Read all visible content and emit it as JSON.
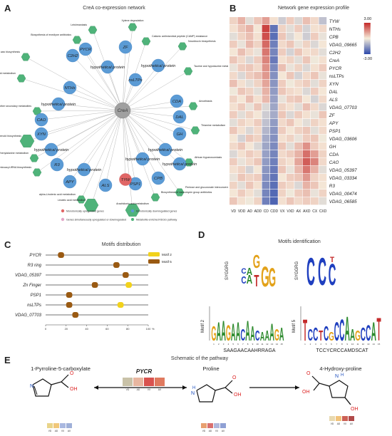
{
  "panels": {
    "a": {
      "letter": "A",
      "title": "CreA co-expression network"
    },
    "b": {
      "letter": "B",
      "title": "Network gene expression profile"
    },
    "c": {
      "letter": "C",
      "title": "Motifs distribution"
    },
    "d": {
      "letter": "D",
      "title": "Motifs identification"
    },
    "e": {
      "letter": "E",
      "title": "Schematic of the pathway"
    }
  },
  "network": {
    "center": "CreA",
    "genes_down": [
      "PYCR",
      "ZF",
      "C2H2",
      "hypothetical protein",
      "hypothetical protein",
      "nsLTPs",
      "NTHs",
      "hypothetical protein",
      "CDA",
      "CAO",
      "DAL",
      "XYN",
      "GH",
      "hypothetical protein",
      "hypothetical protein",
      "R3",
      "hypothetical protein",
      "APY",
      "ALS",
      "PSP1",
      "CPB",
      "hypothetical protein",
      "hypothetical protein"
    ],
    "genes_up": [
      "TYW"
    ],
    "pathways": [
      "Leishmaniasis",
      "Xylene degradation",
      "Biosynthesis of enediyne antibiotics",
      "Cationic antimicrobial peptide (CAMP) resistance",
      "Novobiocin biosynthesis",
      "Cutin, suberine and wax biosynthesis",
      "Taurine and hypotaurine metabolism",
      "Cyanoamino acid metabolism",
      "Amoebiasis",
      "Biosynthesis of various other secondary metabolites",
      "Thiamine metabolism",
      "Diterpenoid biosynthesis",
      "Phenylalanine metabolism",
      "African trypanosomiasis",
      "Aminoacyl-tRNA biosynthesis",
      "Pentose and glucuronate interconversions",
      "alpha-Linolenic acid metabolism",
      "Biosynthesis of vancomycin group antibiotics",
      "Linoleic acid metabolism",
      "Arachidonic acid metabolism"
    ],
    "legend": [
      "Monotonically upregulated genes",
      "Monotonically downregulated genes",
      "Genes simultaneously upregulated or downregulated",
      "Metabolite-enriched KEGG pathway"
    ],
    "colors": {
      "down": "#5b9bd5",
      "up": "#e06666",
      "pathway": "#4fb37a",
      "center": "#a0a0a0",
      "edge": "#b8b8b8"
    }
  },
  "heatmap": {
    "genes": [
      "TYW",
      "NTHs",
      "CPB",
      "VDAG_09665",
      "C2H2",
      "CreA",
      "PYCR",
      "nsLTPs",
      "XYN",
      "DAL",
      "ALS",
      "VDAG_07703",
      "ZF",
      "APY",
      "PSP1",
      "VDAG_03606",
      "GH",
      "CDA",
      "CAO",
      "VDAG_05397",
      "VDAG_03334",
      "R3",
      "VDAG_00474",
      "VDAG_06585"
    ],
    "columns": [
      "VD",
      "VDD",
      "AD",
      "ADD",
      "CD",
      "CDD",
      "VX",
      "VXD",
      "AX",
      "AXD",
      "CX",
      "CXD"
    ],
    "scale_max": "3.00",
    "scale_min": "-3.00",
    "values": [
      [
        0.4,
        0.9,
        -0.3,
        0.6,
        1.2,
        0.2,
        -0.6,
        0.5,
        -0.4,
        0.7,
        0.3,
        -0.8
      ],
      [
        0.2,
        0.6,
        0.9,
        0.1,
        2.6,
        -2.2,
        0.4,
        -0.3,
        0.5,
        -0.5,
        0.2,
        0.3
      ],
      [
        -0.3,
        0.4,
        0.7,
        0.2,
        2.4,
        -2.3,
        0.6,
        -0.4,
        0.1,
        -0.6,
        0.5,
        -0.2
      ],
      [
        0.5,
        -0.2,
        0.8,
        0.4,
        2.0,
        -2.0,
        0.3,
        0.6,
        -0.2,
        0.4,
        -0.4,
        0.1
      ],
      [
        0.1,
        0.7,
        0.3,
        -0.2,
        1.8,
        -1.9,
        0.5,
        -0.5,
        0.6,
        0.2,
        0.3,
        -0.3
      ],
      [
        0.6,
        0.3,
        -0.4,
        0.5,
        1.6,
        -2.1,
        0.2,
        0.4,
        -0.3,
        0.6,
        -0.1,
        0.2
      ],
      [
        -0.2,
        0.5,
        0.6,
        0.3,
        1.4,
        -1.8,
        0.7,
        -0.2,
        0.4,
        -0.4,
        0.2,
        0.5
      ],
      [
        0.3,
        -0.4,
        0.5,
        0.7,
        1.3,
        -1.7,
        0.1,
        0.6,
        -0.5,
        0.3,
        0.6,
        -0.2
      ],
      [
        0.7,
        0.2,
        -0.3,
        0.4,
        1.1,
        -1.6,
        0.5,
        -0.1,
        0.3,
        0.5,
        -0.3,
        0.4
      ],
      [
        -0.1,
        0.6,
        0.4,
        -0.3,
        0.9,
        -1.5,
        0.6,
        0.3,
        0.2,
        -0.4,
        0.5,
        0.1
      ],
      [
        0.4,
        0.1,
        0.7,
        0.2,
        0.8,
        -1.4,
        -0.2,
        0.5,
        0.6,
        0.1,
        -0.5,
        0.3
      ],
      [
        0.2,
        0.5,
        -0.2,
        0.6,
        -0.4,
        -1.3,
        0.4,
        0.2,
        -0.3,
        0.7,
        0.3,
        -0.4
      ],
      [
        0.5,
        -0.3,
        0.4,
        0.1,
        -0.6,
        -1.2,
        0.6,
        -0.4,
        0.5,
        0.2,
        -0.2,
        0.6
      ],
      [
        -0.3,
        0.4,
        0.2,
        0.5,
        -0.8,
        -1.5,
        0.3,
        0.6,
        0.1,
        -0.3,
        0.4,
        0.2
      ],
      [
        0.6,
        0.2,
        -0.4,
        0.3,
        -1.0,
        -1.6,
        0.5,
        0.1,
        0.4,
        0.6,
        -0.3,
        0.3
      ],
      [
        0.1,
        -0.5,
        0.6,
        0.4,
        -1.2,
        -1.7,
        0.2,
        0.4,
        -0.2,
        0.5,
        0.6,
        -0.1
      ],
      [
        0.3,
        0.6,
        0.1,
        -0.4,
        -1.3,
        -1.8,
        0.6,
        -0.3,
        0.7,
        1.4,
        0.5,
        0.2
      ],
      [
        -0.4,
        0.2,
        0.5,
        0.3,
        -1.4,
        -1.9,
        0.3,
        0.5,
        0.9,
        1.9,
        1.2,
        0.4
      ],
      [
        0.5,
        -0.2,
        0.3,
        0.6,
        -1.5,
        -2.0,
        0.4,
        0.2,
        1.1,
        2.2,
        1.6,
        0.3
      ],
      [
        0.2,
        0.4,
        -0.5,
        0.1,
        -1.6,
        -2.1,
        0.6,
        -0.2,
        0.8,
        1.8,
        0.9,
        -0.3
      ],
      [
        -0.2,
        0.6,
        0.4,
        0.5,
        -1.7,
        -2.2,
        0.1,
        0.5,
        0.6,
        1.3,
        0.4,
        0.2
      ],
      [
        0.4,
        -0.3,
        0.6,
        0.2,
        -1.8,
        -2.3,
        0.5,
        0.3,
        -0.4,
        0.9,
        0.6,
        0.1
      ],
      [
        0.1,
        0.5,
        0.2,
        -0.3,
        -1.9,
        -2.4,
        0.4,
        -0.1,
        0.5,
        0.7,
        -0.2,
        0.4
      ],
      [
        0.6,
        0.2,
        -0.1,
        0.4,
        -2.0,
        -2.5,
        0.2,
        0.6,
        0.3,
        0.5,
        0.4,
        -0.3
      ]
    ]
  },
  "motifs": {
    "genes": [
      "PYCR",
      "R3 ring",
      "VDAG_05397",
      "Zn Finger",
      "PSP1",
      "nsLTPs",
      "VDAG_07703"
    ],
    "legend": [
      "Motif 2",
      "Motif 5"
    ],
    "colors": {
      "motif2": "#f2d21b",
      "motif5": "#9a5a12"
    },
    "axis_ticks": [
      "0",
      "20",
      "40",
      "60",
      "80",
      "100"
    ],
    "axis_end": "%",
    "blocks": [
      [
        {
          "m": "motif5",
          "s": 12,
          "e": 18
        }
      ],
      [
        {
          "m": "motif5",
          "s": 66,
          "e": 72
        }
      ],
      [
        {
          "m": "motif5",
          "s": 75,
          "e": 81
        }
      ],
      [
        {
          "m": "motif5",
          "s": 45,
          "e": 51
        },
        {
          "m": "motif2",
          "s": 78,
          "e": 84
        }
      ],
      [
        {
          "m": "motif5",
          "s": 20,
          "e": 26
        }
      ],
      [
        {
          "m": "motif5",
          "s": 20,
          "e": 26
        },
        {
          "m": "motif2",
          "s": 70,
          "e": 76
        }
      ],
      [
        {
          "m": "motif5",
          "s": 26,
          "e": 32
        }
      ]
    ]
  },
  "logos": {
    "top_left": {
      "ylabel": "SYGGRG"
    },
    "top_right": {
      "ylabel": "SYGGRG"
    },
    "bottom_left": {
      "ylabel": "Motif 2",
      "caption": "SAAGAACAAHRRAGA"
    },
    "bottom_right": {
      "ylabel": "Motif 5",
      "caption": "TCCYCRCCAMDSCAT"
    }
  },
  "pathway": {
    "compound1": "1-Pyrroline-5-carboxylate",
    "compound2": "Proline",
    "compound3": "4-Hydroxy-proline",
    "enzyme": "PYCR",
    "mini_cols": [
      "VD",
      "AD",
      "VX",
      "AX"
    ],
    "atoms": {
      "n": "N",
      "nh": "H",
      "o": "O",
      "oh": "OH"
    }
  }
}
